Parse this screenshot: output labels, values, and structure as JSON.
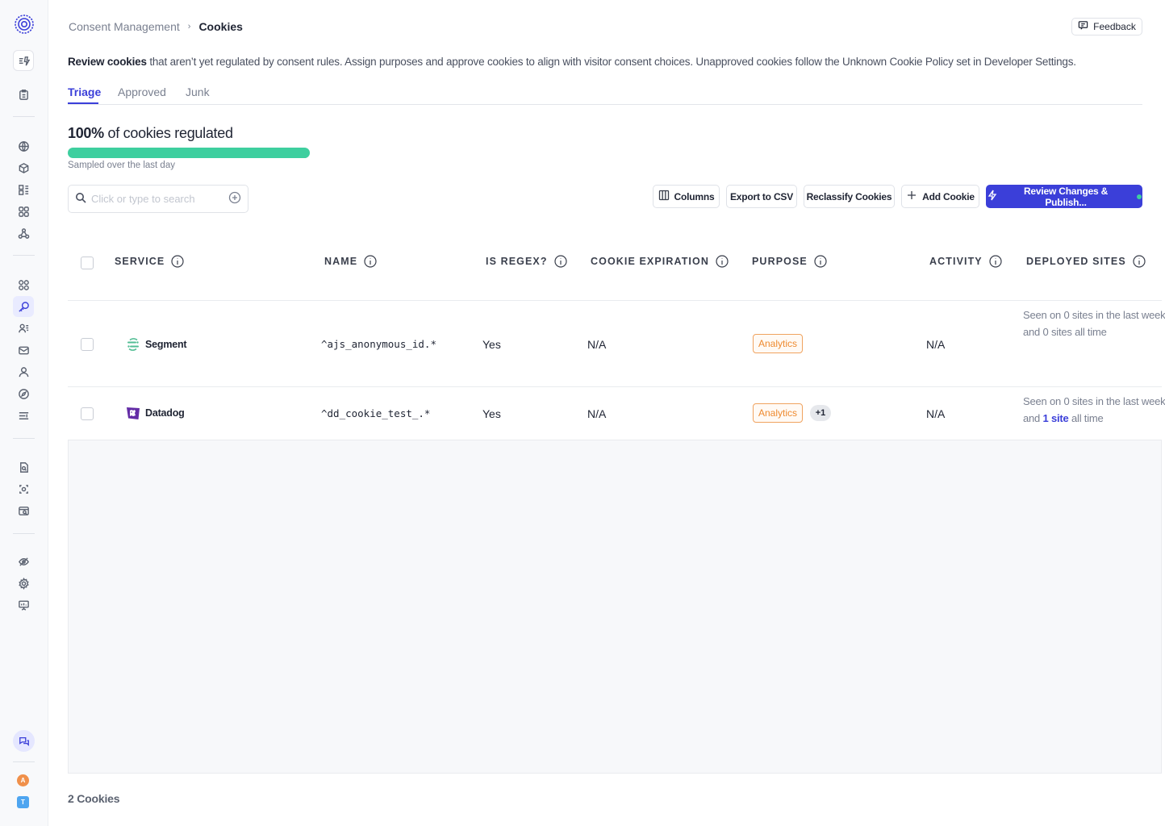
{
  "breadcrumb": {
    "parent": "Consent Management",
    "separator": "›",
    "current": "Cookies"
  },
  "feedback_label": "Feedback",
  "intro": {
    "bold": "Review cookies",
    "rest": " that aren’t yet regulated by consent rules. Assign purposes and approve cookies to align with visitor consent choices. Unapproved cookies follow the Unknown Cookie Policy set in Developer Settings."
  },
  "tabs": [
    {
      "label": "Triage",
      "active": true
    },
    {
      "label": "Approved",
      "active": false
    },
    {
      "label": "Junk",
      "active": false
    }
  ],
  "progress": {
    "percent_label": "100%",
    "suffix": " of cookies regulated",
    "fraction": 1.0,
    "subtitle": "Sampled over the last day",
    "color": "#3ecf9f"
  },
  "search": {
    "placeholder": "Click or type to search"
  },
  "toolbar": {
    "columns": "Columns",
    "export": "Export to CSV",
    "reclassify": "Reclassify Cookies",
    "add": "Add Cookie",
    "publish": "Review Changes & Publish..."
  },
  "columns": {
    "service": "SERVICE",
    "name": "NAME",
    "is_regex": "IS REGEX?",
    "expiration": "COOKIE EXPIRATION",
    "purpose": "PURPOSE",
    "activity": "ACTIVITY",
    "deployed": "DEPLOYED SITES"
  },
  "rows": [
    {
      "service": "Segment",
      "service_icon": "segment-logo",
      "name": "^ajs_anonymous_id.*",
      "is_regex": "Yes",
      "expiration": "N/A",
      "purpose": "Analytics",
      "purpose_extra": "",
      "activity": "N/A",
      "deployed_line1": "Seen on 0 sites in the last week",
      "deployed_pre": "and ",
      "deployed_link": "",
      "deployed_post": "0 sites all time"
    },
    {
      "service": "Datadog",
      "service_icon": "datadog-logo",
      "name": "^dd_cookie_test_.*",
      "is_regex": "Yes",
      "expiration": "N/A",
      "purpose": "Analytics",
      "purpose_extra": "+1",
      "activity": "N/A",
      "deployed_line1": "Seen on 0 sites in the last week",
      "deployed_pre": "and ",
      "deployed_link": "1 site",
      "deployed_post": " all time"
    }
  ],
  "footer": {
    "count": "2 Cookies"
  },
  "sidebar": {
    "avatar_a": "A",
    "avatar_t": "T",
    "avatar_a_color": "#f0904a",
    "avatar_t_color": "#4ea5f0",
    "accent": "#3b3fd9"
  }
}
